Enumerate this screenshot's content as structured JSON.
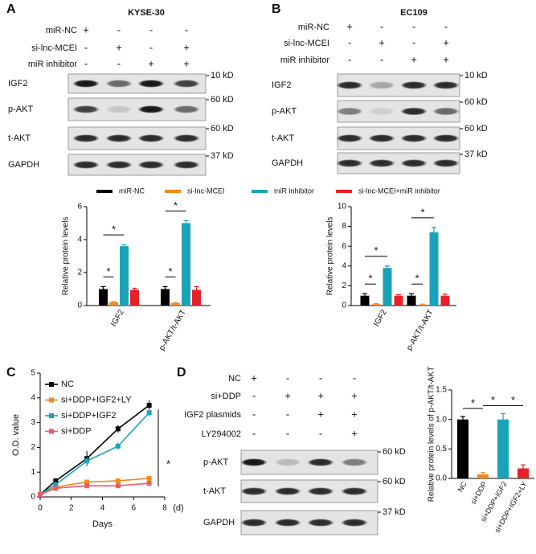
{
  "panels": [
    {
      "label": "A",
      "title": "KYSE-30",
      "conditions": [
        {
          "name": "miR-NC",
          "signs": [
            "+",
            "-",
            "-",
            "-"
          ]
        },
        {
          "name": "si-lnc-MCEI",
          "signs": [
            "-",
            "+",
            "-",
            "+"
          ]
        },
        {
          "name": "miR inhibitor",
          "signs": [
            "-",
            "-",
            "+",
            "+"
          ]
        }
      ],
      "blots": [
        {
          "name": "IGF2",
          "size": "10 kD"
        },
        {
          "name": "p-AKT",
          "size": "60 kD"
        },
        {
          "name": "t-AKT",
          "size": "60 kD"
        },
        {
          "name": "GAPDH",
          "size": "37 kD"
        }
      ]
    },
    {
      "label": "B",
      "title": "EC109",
      "conditions": [
        {
          "name": "miR-NC",
          "signs": [
            "+",
            "-",
            "-",
            "-"
          ]
        },
        {
          "name": "si-lnc-MCEI",
          "signs": [
            "-",
            "+",
            "-",
            "+"
          ]
        },
        {
          "name": "miR inhibitor",
          "signs": [
            "-",
            "-",
            "+",
            "+"
          ]
        }
      ],
      "blots": [
        {
          "name": "IGF2",
          "size": "10 kD"
        },
        {
          "name": "p-AKT",
          "size": "60 kD"
        },
        {
          "name": "t-AKT",
          "size": "60 kD"
        },
        {
          "name": "GAPDH",
          "size": "37 kD"
        }
      ]
    },
    {
      "label": "D",
      "conditions": [
        {
          "name": "NC",
          "signs": [
            "+",
            "-",
            "-",
            "-"
          ]
        },
        {
          "name": "si+DDP",
          "signs": [
            "-",
            "+",
            "+",
            "+"
          ]
        },
        {
          "name": "IGF2 plasmids",
          "signs": [
            "-",
            "-",
            "+",
            "+"
          ]
        },
        {
          "name": "LY294002",
          "signs": [
            "-",
            "-",
            "-",
            "+"
          ]
        }
      ],
      "blots": [
        {
          "name": "p-AKT",
          "size": "60 kD"
        },
        {
          "name": "t-AKT",
          "size": "60 kD"
        },
        {
          "name": "GAPDH",
          "size": "37 kD"
        }
      ]
    }
  ],
  "chart_data": [
    {
      "type": "bar",
      "y_label": "Relative protein levels",
      "categories": [
        "IGF2",
        "p-AKT/t-AKT"
      ],
      "series": [
        {
          "name": "miR-NC",
          "color": "#000000",
          "values": [
            1.0,
            1.0
          ],
          "errors": [
            0.15,
            0.15
          ]
        },
        {
          "name": "si-lnc-MCEI",
          "color": "#f28a1e",
          "values": [
            0.2,
            0.15
          ],
          "errors": [
            0.03,
            0.03
          ]
        },
        {
          "name": "miR inhibitor",
          "color": "#1aa3b8",
          "values": [
            3.6,
            5.0
          ],
          "errors": [
            0.1,
            0.15
          ]
        },
        {
          "name": "si-lnc-MCEI+miR inhibitor",
          "color": "#e8202a",
          "values": [
            0.95,
            0.95
          ],
          "errors": [
            0.1,
            0.2
          ]
        }
      ],
      "ylim": [
        0,
        6
      ],
      "yticks": [
        0,
        2,
        4,
        6
      ],
      "annotations": [
        "*",
        "*",
        "*",
        "*"
      ]
    },
    {
      "type": "bar",
      "y_label": "Relative protein levels",
      "categories": [
        "IGF2",
        "p-AKT/t-AKT"
      ],
      "series": [
        {
          "color": "#000000",
          "values": [
            1.0,
            1.0
          ],
          "errors": [
            0.2,
            0.2
          ]
        },
        {
          "color": "#f28a1e",
          "values": [
            0.15,
            0.1
          ],
          "errors": [
            0.05,
            0.05
          ]
        },
        {
          "color": "#1aa3b8",
          "values": [
            3.8,
            7.4
          ],
          "errors": [
            0.2,
            0.5
          ]
        },
        {
          "color": "#e8202a",
          "values": [
            1.0,
            1.0
          ],
          "errors": [
            0.1,
            0.15
          ]
        }
      ],
      "ylim": [
        0,
        10
      ],
      "yticks": [
        0,
        2,
        4,
        6,
        8,
        10
      ],
      "annotations": [
        "*",
        "*",
        "*",
        "*"
      ]
    },
    {
      "type": "line",
      "panel": "C",
      "x_label": "Days",
      "x_unit": "(d)",
      "y_label": "O.D. value",
      "x": [
        0,
        1,
        3,
        5,
        7
      ],
      "series": [
        {
          "name": "NC",
          "color": "#000000",
          "values": [
            0.1,
            0.65,
            1.55,
            2.75,
            3.7
          ],
          "errors": [
            0.05,
            0.1,
            0.3,
            0.15,
            0.2
          ]
        },
        {
          "name": "si+DDP+IGF2+LY",
          "color": "#f28a1e",
          "values": [
            0.1,
            0.4,
            0.6,
            0.65,
            0.75
          ],
          "errors": [
            0.05,
            0.08,
            0.1,
            0.1,
            0.1
          ]
        },
        {
          "name": "si+DDP+IGF2",
          "color": "#1aa3b8",
          "values": [
            0.1,
            0.5,
            1.45,
            2.05,
            3.4
          ],
          "errors": [
            0.05,
            0.08,
            0.15,
            0.15,
            0.15
          ]
        },
        {
          "name": "si+DDP",
          "color": "#ee5a6a",
          "values": [
            0.1,
            0.35,
            0.45,
            0.45,
            0.55
          ],
          "errors": [
            0.05,
            0.05,
            0.1,
            0.1,
            0.1
          ]
        }
      ],
      "xlim": [
        0,
        8
      ],
      "xticks": [
        0,
        2,
        4,
        6,
        8
      ],
      "ylim": [
        0,
        5
      ],
      "yticks": [
        0,
        1,
        2,
        3,
        4,
        5
      ],
      "annotations": [
        "*"
      ]
    },
    {
      "type": "bar",
      "y_label": "Relative protein levels of p-AKT/t-AKT",
      "categories": [
        "NC",
        "si+DDP",
        "si+DDP+IGF2",
        "si+DDP+IGF2+LY"
      ],
      "values": [
        1.0,
        0.07,
        1.0,
        0.17
      ],
      "errors": [
        0.05,
        0.03,
        0.1,
        0.06
      ],
      "colors": [
        "#000000",
        "#f28a1e",
        "#1aa3b8",
        "#e8202a"
      ],
      "ylim": [
        0,
        1.5
      ],
      "yticks": [
        {
          "value": 0,
          "label": "0.0"
        },
        0.5,
        {
          "value": 1,
          "label": "1.0"
        },
        1.5
      ],
      "annotations": [
        "*",
        "*",
        "*"
      ]
    }
  ]
}
